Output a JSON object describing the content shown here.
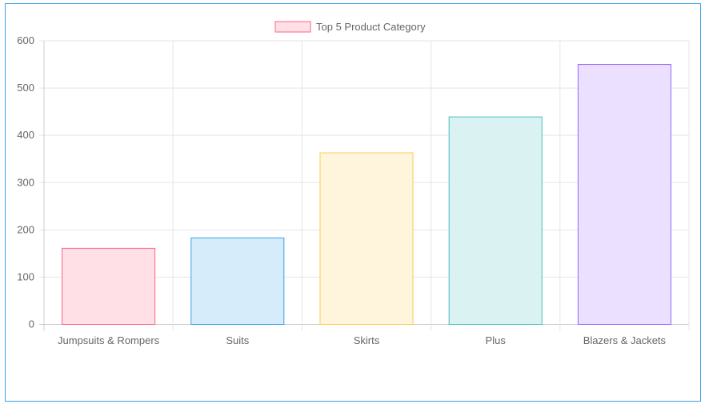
{
  "chart_data": {
    "type": "bar",
    "title": "",
    "xlabel": "",
    "ylabel": "",
    "categories": [
      "Jumpsuits & Rompers",
      "Suits",
      "Skirts",
      "Plus",
      "Blazers & Jackets"
    ],
    "series": [
      {
        "name": "Top 5 Product Category",
        "values": [
          161,
          183,
          363,
          439,
          550
        ]
      }
    ],
    "ylim": [
      0,
      600
    ],
    "yticks": [
      0,
      100,
      200,
      300,
      400,
      500,
      600
    ],
    "grid": true,
    "legend": "top",
    "colors": {
      "borders": [
        "#ff6384",
        "#36a2eb",
        "#ffcd56",
        "#4bc0c0",
        "#9966ff"
      ],
      "fills": [
        "#ffe0e6",
        "#d7ecfb",
        "#fff5dd",
        "#dbf2f2",
        "#ebe0ff"
      ],
      "frame": "#36a2eb"
    }
  }
}
